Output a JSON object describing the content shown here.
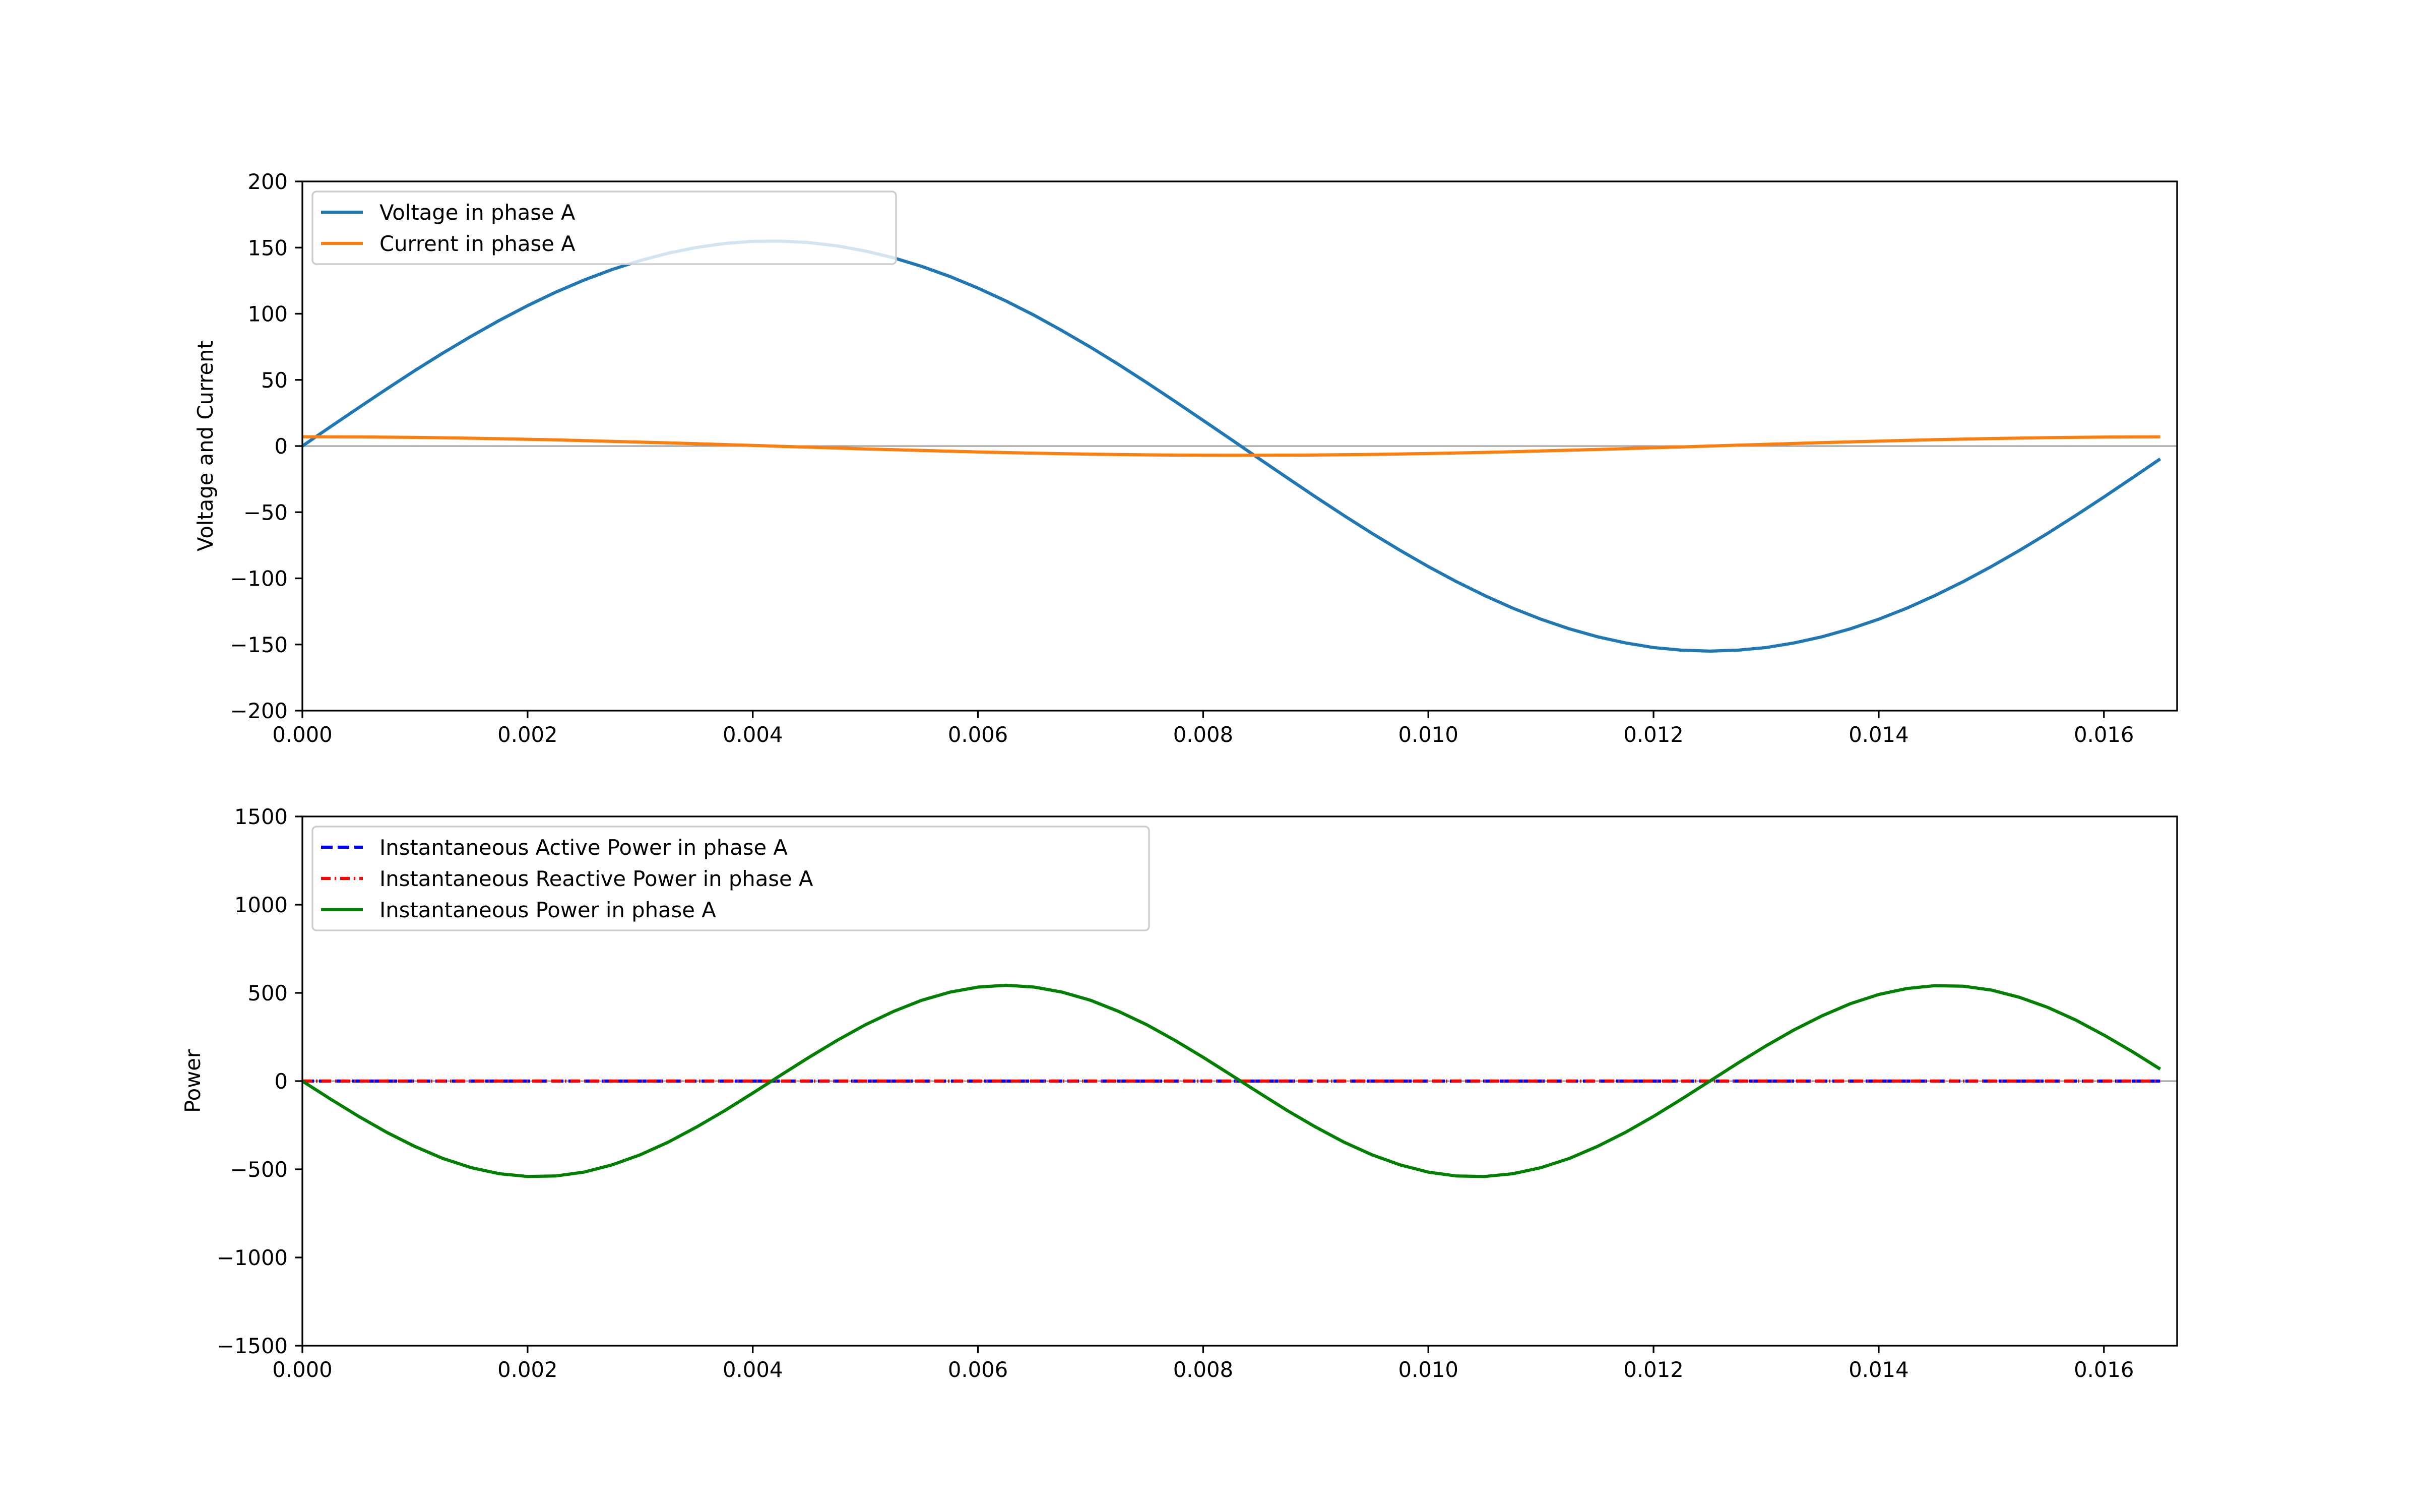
{
  "chart_data": [
    {
      "type": "line",
      "id": "voltage-current",
      "title": "",
      "xlabel": "",
      "ylabel": "Voltage and Current",
      "xlim": [
        0,
        0.01665
      ],
      "ylim": [
        -200,
        200
      ],
      "xticks": [
        0,
        0.002,
        0.004,
        0.006,
        0.008,
        0.01,
        0.012,
        0.014,
        0.016
      ],
      "xtick_labels": [
        "0.000",
        "0.002",
        "0.004",
        "0.006",
        "0.008",
        "0.010",
        "0.012",
        "0.014",
        "0.016"
      ],
      "yticks": [
        200,
        150,
        100,
        50,
        0,
        -50,
        -100,
        -150,
        -200
      ],
      "ytick_labels": [
        "200",
        "150",
        "100",
        "50",
        "0",
        "−50",
        "−100",
        "−150",
        "−200"
      ],
      "zero_line": true,
      "legend_placement": "top-left",
      "x": {
        "start": 0,
        "step": 0.00025,
        "count": 67
      },
      "series": [
        {
          "name": "Voltage in phase A",
          "color": "#1f77b4",
          "style": "solid",
          "values": [
            0,
            14.6,
            29.0,
            43.2,
            57.1,
            70.4,
            83.0,
            95.0,
            106.1,
            116.3,
            125.4,
            133.4,
            140.2,
            145.8,
            150.1,
            153.1,
            154.7,
            154.9,
            153.8,
            151.3,
            147.4,
            142.3,
            135.8,
            128.2,
            119.4,
            109.6,
            98.8,
            87.1,
            74.7,
            61.6,
            47.9,
            33.8,
            19.4,
            4.9,
            -9.7,
            -24.2,
            -38.5,
            -52.5,
            -66.0,
            -78.9,
            -91.1,
            -102.5,
            -113.0,
            -122.5,
            -130.9,
            -138.1,
            -144.1,
            -148.8,
            -152.3,
            -154.3,
            -155.0,
            -154.3,
            -152.3,
            -148.8,
            -144.1,
            -138.1,
            -130.9,
            -122.5,
            -113.0,
            -102.5,
            -91.1,
            -78.9,
            -66.0,
            -52.5,
            -38.5,
            -24.2,
            -9.7
          ]
        },
        {
          "name": "Current in phase A",
          "color": "#ff7f0e",
          "style": "solid",
          "values": [
            7,
            6.97,
            6.88,
            6.72,
            6.51,
            6.24,
            5.91,
            5.53,
            5.1,
            4.63,
            4.11,
            3.56,
            2.98,
            2.37,
            1.74,
            1.09,
            0.44,
            -0.22,
            -0.88,
            -1.53,
            -2.16,
            -2.78,
            -3.37,
            -3.93,
            -4.46,
            -4.95,
            -5.39,
            -5.79,
            -6.13,
            -6.42,
            -6.66,
            -6.83,
            -6.94,
            -7.0,
            -6.99,
            -6.91,
            -6.78,
            -6.59,
            -6.33,
            -6.02,
            -5.66,
            -5.25,
            -4.79,
            -4.29,
            -3.75,
            -3.18,
            -2.58,
            -1.95,
            -1.31,
            -0.66,
            0,
            0.66,
            1.31,
            1.95,
            2.58,
            3.18,
            3.75,
            4.29,
            4.79,
            5.25,
            5.66,
            6.02,
            6.33,
            6.59,
            6.78,
            6.91,
            6.99
          ]
        }
      ]
    },
    {
      "type": "line",
      "id": "power",
      "title": "",
      "xlabel": "",
      "ylabel": "Power",
      "xlim": [
        0,
        0.01665
      ],
      "ylim": [
        -1500,
        1500
      ],
      "xticks": [
        0,
        0.002,
        0.004,
        0.006,
        0.008,
        0.01,
        0.012,
        0.014,
        0.016
      ],
      "xtick_labels": [
        "0.000",
        "0.002",
        "0.004",
        "0.006",
        "0.008",
        "0.010",
        "0.012",
        "0.014",
        "0.016"
      ],
      "yticks": [
        1500,
        1000,
        500,
        0,
        -500,
        -1000,
        -1500
      ],
      "ytick_labels": [
        "1500",
        "1000",
        "500",
        "0",
        "−500",
        "−1000",
        "−1500"
      ],
      "zero_line": true,
      "legend_placement": "top-left",
      "x": {
        "start": 0,
        "step": 0.00025,
        "count": 67
      },
      "series": [
        {
          "name": "Instantaneous Active Power in phase A",
          "color": "#0000ff",
          "style": "dashed",
          "values": [
            0,
            0,
            0,
            0,
            0,
            0,
            0,
            0,
            0,
            0,
            0,
            0,
            0,
            0,
            0,
            0,
            0,
            0,
            0,
            0,
            0,
            0,
            0,
            0,
            0,
            0,
            0,
            0,
            0,
            0,
            0,
            0,
            0,
            0,
            0,
            0,
            0,
            0,
            0,
            0,
            0,
            0,
            0,
            0,
            0,
            0,
            0,
            0,
            0,
            0,
            0,
            0,
            0,
            0,
            0,
            0,
            0,
            0,
            0,
            0,
            0,
            0,
            0,
            0,
            0,
            0,
            0
          ]
        },
        {
          "name": "Instantaneous Reactive Power in phase A",
          "color": "#ff0000",
          "style": "dashdot",
          "values": [
            0,
            0,
            0,
            0,
            0,
            0,
            0,
            0,
            0,
            0,
            0,
            0,
            0,
            0,
            0,
            0,
            0,
            0,
            0,
            0,
            0,
            0,
            0,
            0,
            0,
            0,
            0,
            0,
            0,
            0,
            0,
            0,
            0,
            0,
            0,
            0,
            0,
            0,
            0,
            0,
            0,
            0,
            0,
            0,
            0,
            0,
            0,
            0,
            0,
            0,
            0,
            0,
            0,
            0,
            0,
            0,
            0,
            0,
            0,
            0,
            0,
            0,
            0,
            0,
            0,
            0,
            0
          ]
        },
        {
          "name": "Instantaneous Power in phase A",
          "color": "#008000",
          "style": "solid",
          "values": [
            0,
            -102,
            -200,
            -291,
            -371,
            -439,
            -491,
            -525,
            -541,
            -538,
            -516,
            -475,
            -418,
            -346,
            -261,
            -168,
            -68,
            34,
            135,
            231,
            319,
            395,
            458,
            504,
            533,
            543,
            533,
            504,
            458,
            395,
            319,
            231,
            135,
            34,
            -68,
            -168,
            -261,
            -346,
            -418,
            -475,
            -516,
            -538,
            -541,
            -525,
            -491,
            -439,
            -371,
            -291,
            -200,
            -102,
            0,
            102,
            200,
            291,
            371,
            439,
            491,
            525,
            541,
            538,
            516,
            475,
            418,
            346,
            261,
            168,
            68
          ]
        }
      ]
    }
  ]
}
